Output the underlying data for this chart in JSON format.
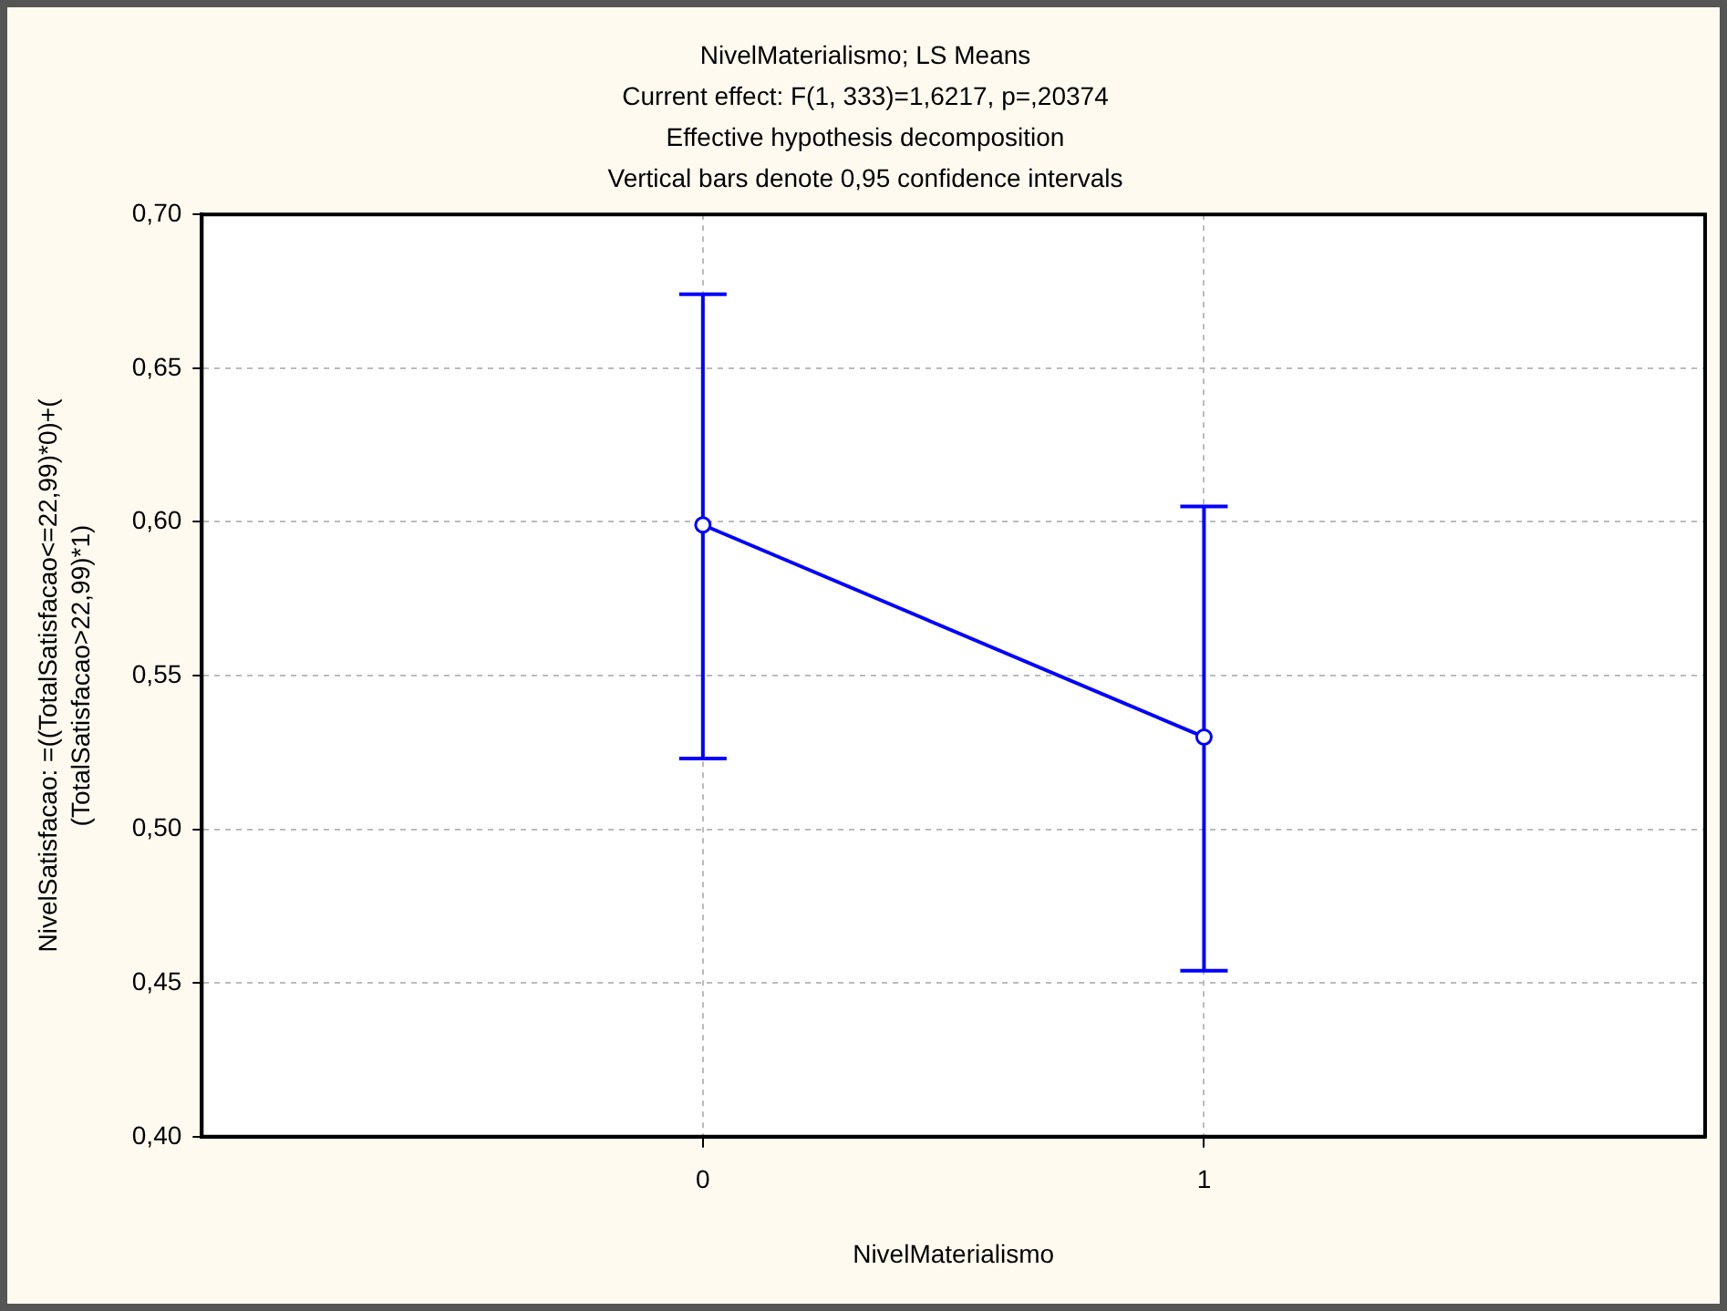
{
  "chart_data": {
    "type": "line",
    "title": "NivelMaterialismo; LS Means",
    "subtitle": "Current effect: F(1, 333)=1,6217, p=,20374",
    "annotations": [
      "Effective hypothesis decomposition",
      "Vertical bars denote 0,95 confidence intervals"
    ],
    "xlabel": "NivelMaterialismo",
    "ylabel": "NivelSatisfacao: =((TotalSatisfacao<=22,99)*0)+(\n(TotalSatisfacao>22,99)*1)",
    "categories": [
      "0",
      "1"
    ],
    "series": [
      {
        "color": "#0000ff",
        "values": [
          0.599,
          0.53
        ],
        "errors": [
          [
            0.523,
            0.674
          ],
          [
            0.454,
            0.605
          ]
        ]
      }
    ],
    "ylim": [
      0.4,
      0.7
    ],
    "yticks": [
      {
        "value": 0.4,
        "label": "0,40"
      },
      {
        "value": 0.45,
        "label": "0,45"
      },
      {
        "value": 0.5,
        "label": "0,50"
      },
      {
        "value": 0.55,
        "label": "0,55"
      },
      {
        "value": 0.6,
        "label": "0,60"
      },
      {
        "value": 0.65,
        "label": "0,65"
      },
      {
        "value": 0.7,
        "label": "0,70"
      }
    ],
    "grid": true,
    "legend": false,
    "marker": "circle",
    "line_style": "solid"
  }
}
